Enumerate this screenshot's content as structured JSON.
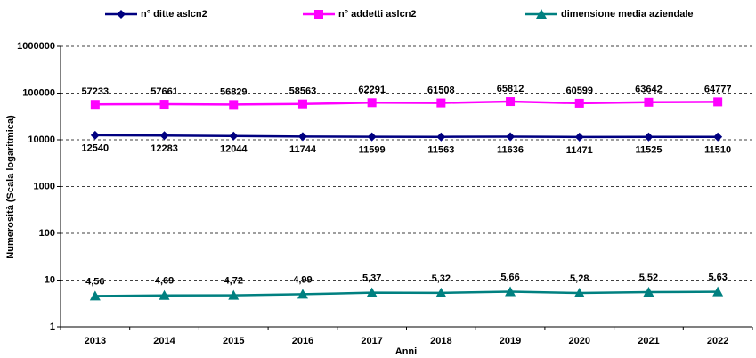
{
  "chart_data": {
    "type": "line",
    "x_label": "Anni",
    "y_label": "Numerosità (Scala logaritmica)",
    "categories": [
      "2013",
      "2014",
      "2015",
      "2016",
      "2017",
      "2018",
      "2019",
      "2020",
      "2021",
      "2022"
    ],
    "series": [
      {
        "name": "n° ditte aslcn2",
        "color": "#000080",
        "marker": "diamond",
        "values": [
          12540,
          12283,
          12044,
          11744,
          11599,
          11563,
          11636,
          11471,
          11525,
          11510
        ]
      },
      {
        "name": "n° addetti aslcn2",
        "color": "#ff00ff",
        "marker": "square",
        "values": [
          57233,
          57661,
          56829,
          58563,
          62291,
          61508,
          65812,
          60599,
          63642,
          64777
        ]
      },
      {
        "name": "dimensione media aziendale",
        "color": "#008080",
        "marker": "triangle",
        "values": [
          4.56,
          4.69,
          4.72,
          4.99,
          5.37,
          5.32,
          5.66,
          5.28,
          5.52,
          5.63
        ],
        "value_labels": [
          "4,56",
          "4,69",
          "4,72",
          "4,99",
          "5,37",
          "5,32",
          "5,66",
          "5,28",
          "5,52",
          "5,63"
        ]
      }
    ],
    "log_scale": true,
    "ylim": [
      1,
      1000000
    ],
    "yticks": [
      1,
      10,
      100,
      1000,
      10000,
      100000,
      1000000
    ],
    "grid": true,
    "legend": "top"
  }
}
